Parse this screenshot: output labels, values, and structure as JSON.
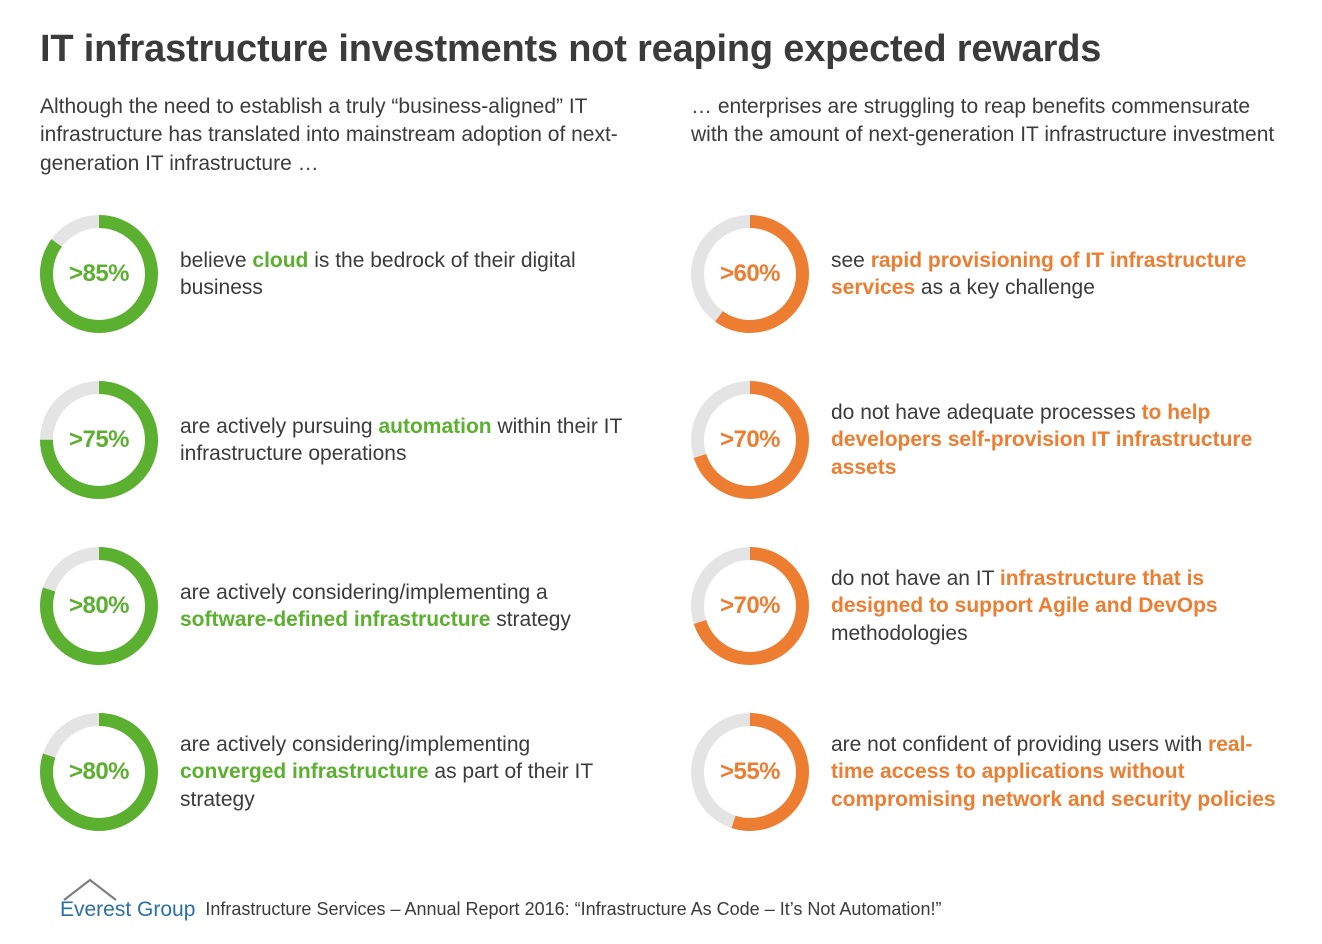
{
  "title": "IT infrastructure investments not reaping expected rewards",
  "colors": {
    "green": "#5bb030",
    "orange": "#ed7d31",
    "track": "#e4e4e4",
    "text": "#3b3b3b",
    "logo_blue": "#2a6fa8",
    "logo_gray": "#7f7f7f",
    "background": "#ffffff"
  },
  "donut": {
    "size": 118,
    "stroke_width": 13,
    "label_fontsize": 24
  },
  "left": {
    "intro": "Although the need to establish a truly “business-aligned” IT infrastructure has translated into mainstream adoption of next-generation IT infrastructure …",
    "color": "#5bb030",
    "items": [
      {
        "percent": 85,
        "label": ">85%",
        "text_before": "believe ",
        "highlight": "cloud",
        "text_after": " is the bedrock of their digital business"
      },
      {
        "percent": 75,
        "label": ">75%",
        "text_before": "are actively pursuing ",
        "highlight": "automation",
        "text_after": " within their IT infrastructure operations"
      },
      {
        "percent": 80,
        "label": ">80%",
        "text_before": "are actively considering/implementing a ",
        "highlight": "software-defined infrastructure",
        "text_after": " strategy"
      },
      {
        "percent": 80,
        "label": ">80%",
        "text_before": "are actively considering/implementing ",
        "highlight": "converged infrastructure",
        "text_after": " as part of their IT strategy"
      }
    ]
  },
  "right": {
    "intro": "… enterprises are struggling to reap benefits commensurate with the amount of next-generation IT infrastructure investment",
    "color": "#ed7d31",
    "items": [
      {
        "percent": 60,
        "label": ">60%",
        "text_before": "see ",
        "highlight": "rapid provisioning of IT infrastructure services",
        "text_after": " as a key challenge"
      },
      {
        "percent": 70,
        "label": ">70%",
        "text_before": "do not have adequate processes ",
        "highlight": "to help developers self-provision IT infrastructure assets",
        "text_after": ""
      },
      {
        "percent": 70,
        "label": ">70%",
        "text_before": "do not have an IT ",
        "highlight": "infrastructure that is designed to support Agile and DevOps",
        "text_after": " methodologies"
      },
      {
        "percent": 55,
        "label": ">55%",
        "text_before": "are not confident of providing users with ",
        "highlight": "real-time access to applications without compromising network and security policies",
        "text_after": ""
      }
    ]
  },
  "footer": {
    "logo_text": "Everest Group",
    "caption": "Infrastructure Services – Annual Report 2016: “Infrastructure As Code – It’s Not Automation!”"
  }
}
